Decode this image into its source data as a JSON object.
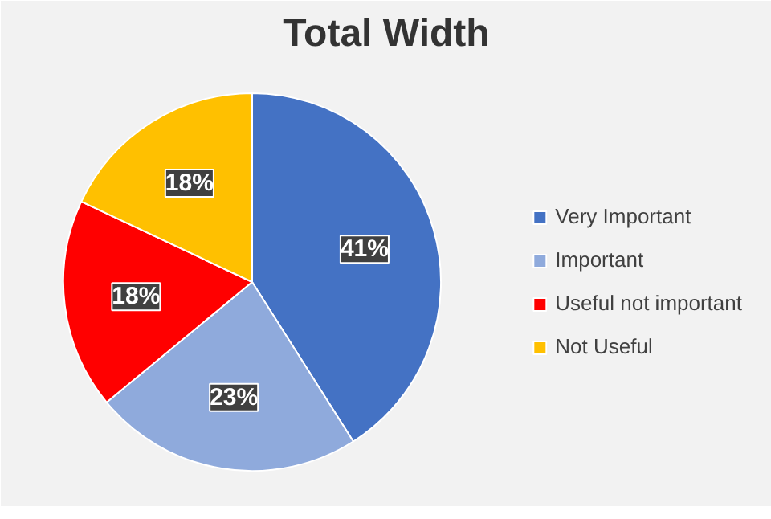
{
  "chart_data": {
    "type": "pie",
    "title": "Total Width",
    "categories": [
      "Very Important",
      "Important",
      "Useful not important",
      "Not Useful"
    ],
    "values": [
      41,
      23,
      18,
      18
    ],
    "colors": [
      "#4472c4",
      "#8faadc",
      "#ff0000",
      "#ffc000"
    ],
    "value_labels": [
      "41%",
      "23%",
      "18%",
      "18%"
    ],
    "legend": "right"
  }
}
